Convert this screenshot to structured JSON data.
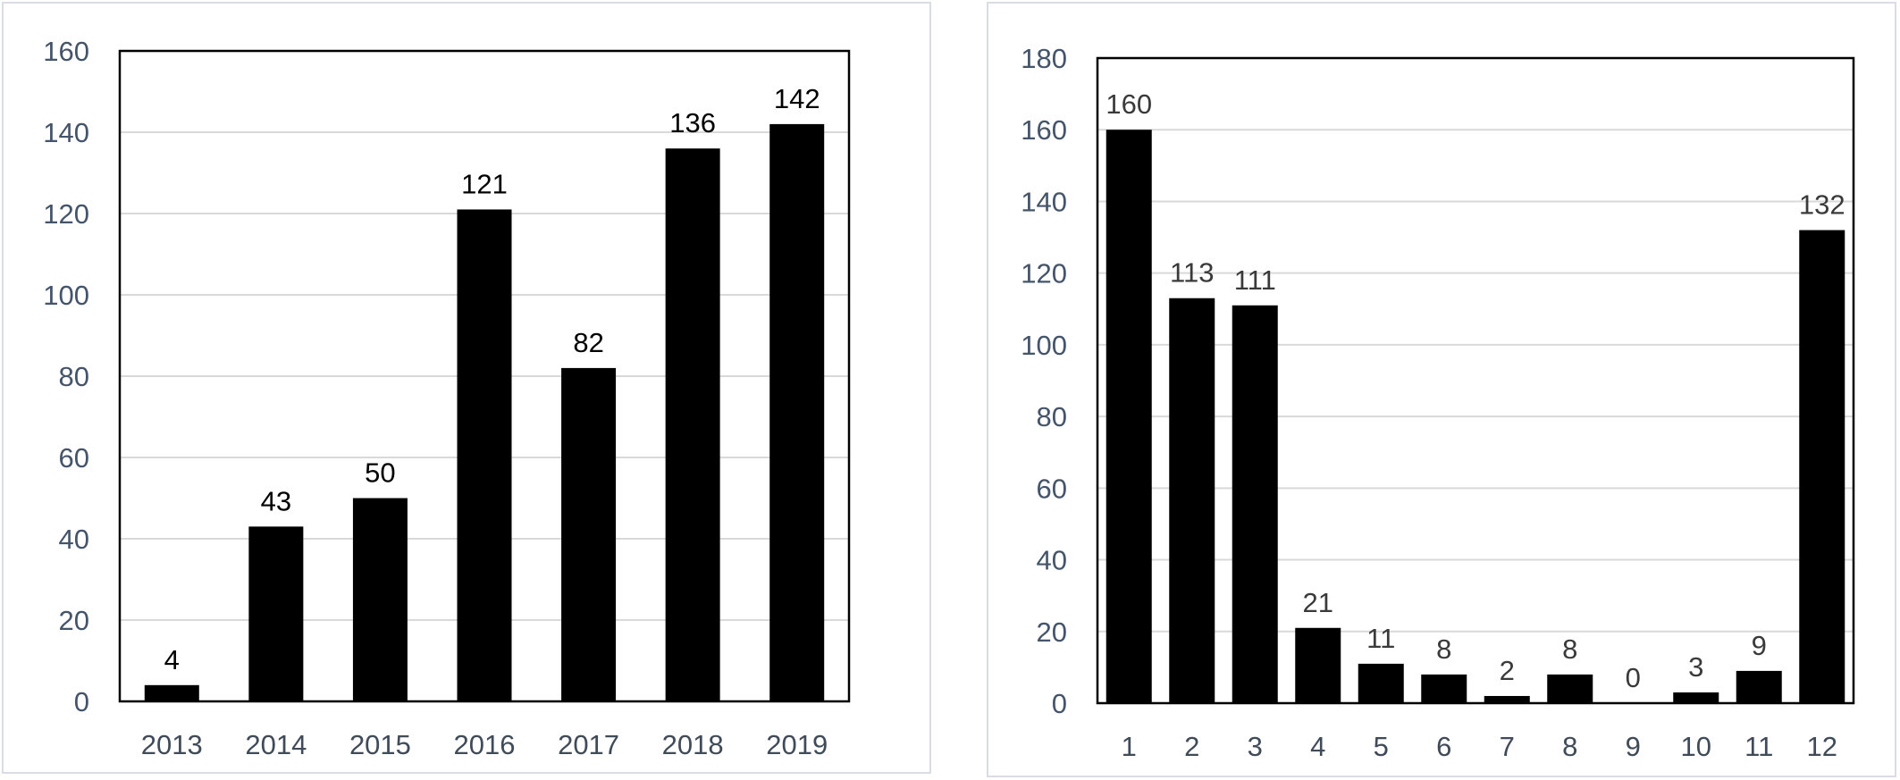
{
  "chart_data": [
    {
      "type": "bar",
      "title": "",
      "xlabel": "",
      "ylabel": "",
      "categories": [
        "2013",
        "2014",
        "2015",
        "2016",
        "2017",
        "2018",
        "2019"
      ],
      "values": [
        4,
        43,
        50,
        121,
        82,
        136,
        142
      ],
      "data_labels": [
        "4",
        "43",
        "50",
        "121",
        "82",
        "136",
        "142"
      ],
      "ylim": [
        0,
        160
      ],
      "yticks": [
        "0",
        "20",
        "40",
        "60",
        "80",
        "100",
        "120",
        "140",
        "160"
      ],
      "grid": true,
      "legend": "none",
      "bar_color": "#000000"
    },
    {
      "type": "bar",
      "title": "",
      "xlabel": "",
      "ylabel": "",
      "categories": [
        "1",
        "2",
        "3",
        "4",
        "5",
        "6",
        "7",
        "8",
        "9",
        "10",
        "11",
        "12"
      ],
      "values": [
        160,
        113,
        111,
        21,
        11,
        8,
        2,
        8,
        0,
        3,
        9,
        132
      ],
      "data_labels": [
        "160",
        "113",
        "111",
        "21",
        "11",
        "8",
        "2",
        "8",
        "0",
        "3",
        "9",
        "132"
      ],
      "ylim": [
        0,
        180
      ],
      "yticks": [
        "0",
        "20",
        "40",
        "60",
        "80",
        "100",
        "120",
        "140",
        "160",
        "180"
      ],
      "grid": true,
      "legend": "none",
      "bar_color": "#000000"
    }
  ]
}
